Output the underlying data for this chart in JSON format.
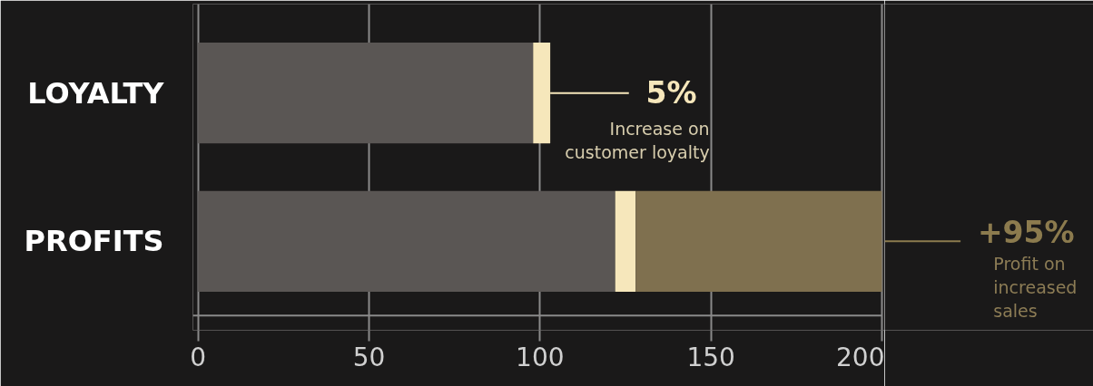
{
  "chart_data": {
    "type": "bar",
    "orientation": "horizontal",
    "stacked": true,
    "categories": [
      "LOYALTY",
      "PROFITS"
    ],
    "series": [
      {
        "color": "#5a5654",
        "values": [
          98,
          122
        ]
      },
      {
        "color": "#f6e7bb",
        "values": [
          5,
          6
        ]
      },
      {
        "color": "#7f704f",
        "values": [
          null,
          72
        ]
      }
    ],
    "xlim": [
      0,
      200
    ],
    "xticks": [
      0,
      50,
      100,
      150,
      200
    ],
    "grid": "x",
    "annotations": [
      "5%",
      "Increase on\ncustomer loyalty",
      "+95%",
      "Profit on\nincreased\nsales"
    ]
  }
}
